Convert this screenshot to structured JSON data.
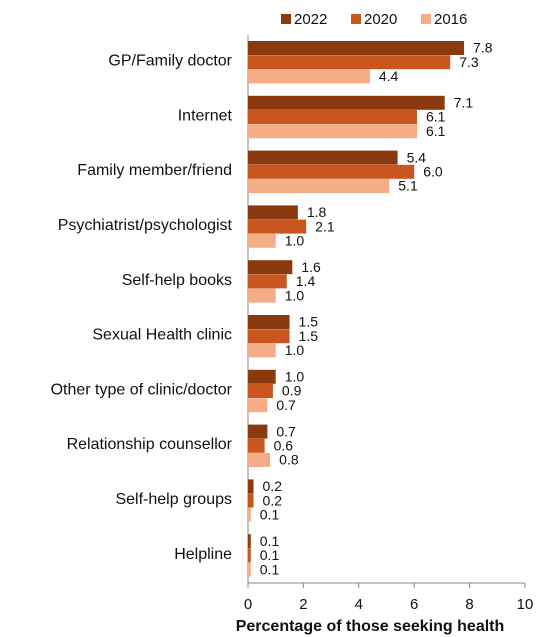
{
  "chart_data": {
    "type": "bar",
    "orientation": "horizontal",
    "x_label": "Percentage of those seeking health",
    "categories": [
      "GP/Family doctor",
      "Internet",
      "Family member/friend",
      "Psychiatrist/psychologist",
      "Self-help books",
      "Sexual Health clinic",
      "Other type of clinic/doctor",
      "Relationship counsellor",
      "Self-help groups",
      "Helpline"
    ],
    "series": [
      {
        "name": "2022",
        "color": "#8b3a10",
        "values": [
          7.8,
          7.1,
          5.4,
          1.8,
          1.6,
          1.5,
          1,
          0.7,
          0.2,
          0.1
        ],
        "value_labels": [
          "7.8",
          "7.1",
          "5.4",
          "1.8",
          "1.6",
          "1.5",
          "1.0",
          "0.7",
          "0.2",
          "0.1"
        ]
      },
      {
        "name": "2020",
        "color": "#c9561f",
        "values": [
          7.3,
          6.1,
          6,
          2.1,
          1.4,
          1.5,
          0.9,
          0.6,
          0.2,
          0.1
        ],
        "value_labels": [
          "7.3",
          "6.1",
          "6.0",
          "2.1",
          "1.4",
          "1.5",
          "0.9",
          "0.6",
          "0.2",
          "0.1"
        ]
      },
      {
        "name": "2016",
        "color": "#f5ad88",
        "values": [
          4.4,
          6.1,
          5.1,
          1,
          1,
          1,
          0.7,
          0.8,
          0.1,
          0.1
        ],
        "value_labels": [
          "4.4",
          "6.1",
          "5.1",
          "1.0",
          "1.0",
          "1.0",
          "0.7",
          "0.8",
          "0.1",
          "0.1"
        ]
      }
    ],
    "xlim": [
      0,
      10
    ],
    "xticks": [
      0,
      2,
      4,
      6,
      8,
      10
    ],
    "legend": "top"
  }
}
